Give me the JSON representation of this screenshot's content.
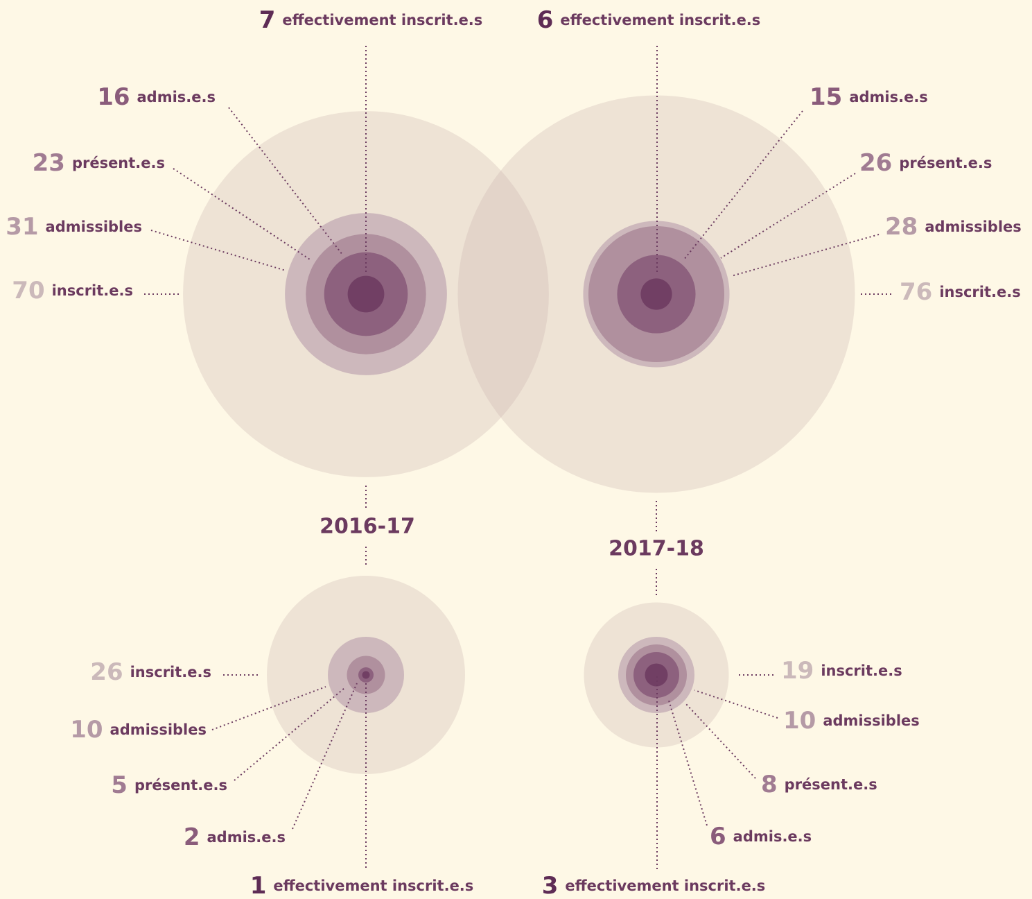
{
  "chart_data": {
    "type": "concentric",
    "years": [
      "2016-17",
      "2017-18"
    ],
    "colors": [
      "#c9b3b0",
      "#cdb8bc",
      "#b0909e",
      "#8d617e",
      "#713f64"
    ],
    "number_colors": [
      "#cbb9ba",
      "#b59aa6",
      "#a07b92",
      "#8a5c7b",
      "#5e2c55"
    ],
    "panels": [
      {
        "values": [
          70,
          31,
          23,
          16,
          7
        ],
        "labels": [
          "inscrit.e.s",
          "admissibles",
          "présent.e.s",
          "admis.e.s",
          "effectivement inscrit.e.s"
        ]
      },
      {
        "values": [
          76,
          28,
          26,
          15,
          6
        ],
        "labels": [
          "inscrit.e.s",
          "admissibles",
          "présent.e.s",
          "admis.e.s",
          "effectivement inscrit.e.s"
        ]
      },
      {
        "values": [
          26,
          10,
          5,
          2,
          1
        ],
        "labels": [
          "inscrit.e.s",
          "admissibles",
          "présent.e.s",
          "admis.e.s",
          "effectivement inscrit.e.s"
        ]
      },
      {
        "values": [
          19,
          10,
          8,
          6,
          3
        ],
        "labels": [
          "inscrit.e.s",
          "admissibles",
          "présent.e.s",
          "admis.e.s",
          "effectivement inscrit.e.s"
        ]
      }
    ]
  }
}
